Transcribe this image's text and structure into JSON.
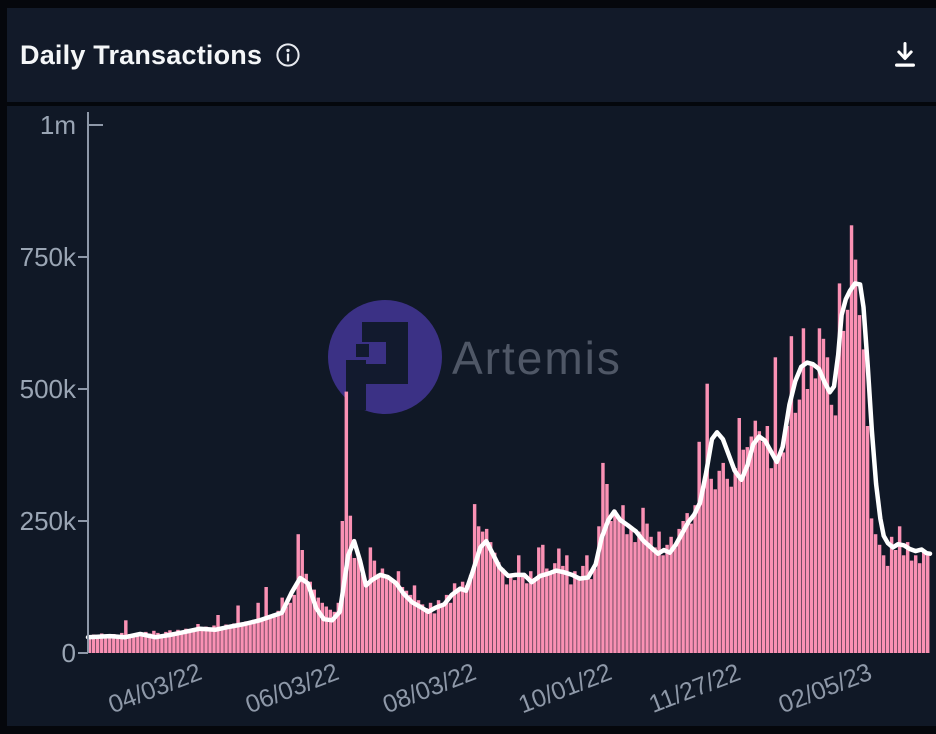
{
  "header": {
    "title": "Daily Transactions",
    "info_icon": "info-icon",
    "download_icon": "download-icon"
  },
  "watermark": {
    "brand": "Artemis"
  },
  "colors": {
    "page_frame": "#05070c",
    "header_bg": "#121a29",
    "chart_bg": "#101826",
    "bar_pink": "#fa91b4",
    "line_white": "#ffffff",
    "axis": "#8e98a8",
    "y_label": "#9aa5b4",
    "x_label": "#8e98a8",
    "title_text": "#f4f6f8",
    "watermark_circle": "#3b3185",
    "watermark_glyph": "#121a2e",
    "watermark_text": "#8d95a6"
  },
  "chart_data": {
    "type": "bar",
    "title": "Daily Transactions",
    "unit": "transactions per day",
    "grid": false,
    "legend": false,
    "y_axis": {
      "min": 0,
      "max": 1000000,
      "ticks": [
        {
          "label": "1m",
          "value_k": 1000
        },
        {
          "label": "750k",
          "value_k": 750
        },
        {
          "label": "500k",
          "value_k": 500
        },
        {
          "label": "250k",
          "value_k": 250
        },
        {
          "label": "0",
          "value_k": 0
        }
      ]
    },
    "x_axis": {
      "label_rotation_deg": -21,
      "ticks": [
        {
          "label": "04/03/22",
          "pos": 0.083
        },
        {
          "label": "06/03/22",
          "pos": 0.246
        },
        {
          "label": "08/03/22",
          "pos": 0.409
        },
        {
          "label": "10/01/22",
          "pos": 0.57
        },
        {
          "label": "11/27/22",
          "pos": 0.724
        },
        {
          "label": "02/05/23",
          "pos": 0.879
        }
      ]
    },
    "series": [
      {
        "name": "daily-transactions-bars",
        "type": "bar",
        "color": "#fa91b4",
        "values_k": [
          32,
          35,
          33,
          37,
          34,
          31,
          36,
          33,
          38,
          62,
          36,
          34,
          38,
          35,
          40,
          37,
          42,
          38,
          35,
          40,
          43,
          39,
          44,
          41,
          46,
          42,
          47,
          55,
          48,
          50,
          46,
          52,
          72,
          49,
          54,
          50,
          56,
          90,
          58,
          60,
          57,
          63,
          95,
          66,
          125,
          70,
          75,
          80,
          105,
          88,
          95,
          110,
          225,
          195,
          150,
          135,
          120,
          105,
          95,
          88,
          82,
          78,
          95,
          250,
          495,
          260,
          180,
          185,
          150,
          135,
          200,
          175,
          150,
          160,
          148,
          140,
          132,
          155,
          125,
          118,
          110,
          128,
          100,
          92,
          85,
          95,
          75,
          100,
          90,
          110,
          95,
          132,
          120,
          135,
          128,
          148,
          282,
          240,
          230,
          235,
          210,
          190,
          172,
          160,
          130,
          150,
          138,
          185,
          145,
          132,
          155,
          142,
          200,
          205,
          160,
          150,
          170,
          198,
          165,
          185,
          130,
          155,
          145,
          165,
          185,
          140,
          160,
          240,
          360,
          320,
          250,
          270,
          255,
          280,
          225,
          240,
          210,
          230,
          275,
          245,
          220,
          200,
          230,
          185,
          205,
          220,
          200,
          235,
          250,
          265,
          245,
          280,
          400,
          310,
          510,
          330,
          310,
          345,
          360,
          330,
          315,
          350,
          445,
          385,
          390,
          410,
          440,
          420,
          400,
          430,
          350,
          560,
          370,
          380,
          430,
          600,
          455,
          480,
          615,
          500,
          545,
          520,
          615,
          595,
          560,
          470,
          450,
          700,
          610,
          650,
          810,
          745,
          640,
          575,
          430,
          255,
          225,
          205,
          185,
          165,
          220,
          195,
          240,
          185,
          210,
          175,
          185,
          170,
          195,
          185
        ]
      },
      {
        "name": "smoothed-trend-line",
        "type": "line",
        "color": "#ffffff",
        "points_fx_valuek": [
          [
            0,
            30
          ],
          [
            0.026,
            32
          ],
          [
            0.044,
            30
          ],
          [
            0.062,
            36
          ],
          [
            0.08,
            30
          ],
          [
            0.097,
            34
          ],
          [
            0.115,
            40
          ],
          [
            0.133,
            46
          ],
          [
            0.151,
            44
          ],
          [
            0.169,
            50
          ],
          [
            0.186,
            55
          ],
          [
            0.204,
            62
          ],
          [
            0.219,
            70
          ],
          [
            0.23,
            76
          ],
          [
            0.242,
            115
          ],
          [
            0.252,
            142
          ],
          [
            0.261,
            132
          ],
          [
            0.271,
            85
          ],
          [
            0.28,
            64
          ],
          [
            0.29,
            62
          ],
          [
            0.299,
            78
          ],
          [
            0.309,
            185
          ],
          [
            0.316,
            212
          ],
          [
            0.323,
            175
          ],
          [
            0.33,
            128
          ],
          [
            0.337,
            138
          ],
          [
            0.347,
            148
          ],
          [
            0.356,
            144
          ],
          [
            0.366,
            132
          ],
          [
            0.375,
            112
          ],
          [
            0.385,
            96
          ],
          [
            0.394,
            88
          ],
          [
            0.404,
            78
          ],
          [
            0.413,
            86
          ],
          [
            0.423,
            92
          ],
          [
            0.432,
            110
          ],
          [
            0.442,
            122
          ],
          [
            0.449,
            118
          ],
          [
            0.456,
            150
          ],
          [
            0.466,
            200
          ],
          [
            0.473,
            212
          ],
          [
            0.48,
            190
          ],
          [
            0.489,
            162
          ],
          [
            0.499,
            146
          ],
          [
            0.508,
            148
          ],
          [
            0.518,
            148
          ],
          [
            0.527,
            134
          ],
          [
            0.537,
            146
          ],
          [
            0.546,
            150
          ],
          [
            0.556,
            156
          ],
          [
            0.565,
            153
          ],
          [
            0.575,
            148
          ],
          [
            0.584,
            141
          ],
          [
            0.594,
            143
          ],
          [
            0.603,
            168
          ],
          [
            0.61,
            218
          ],
          [
            0.618,
            252
          ],
          [
            0.625,
            268
          ],
          [
            0.632,
            252
          ],
          [
            0.641,
            242
          ],
          [
            0.651,
            230
          ],
          [
            0.66,
            212
          ],
          [
            0.67,
            198
          ],
          [
            0.677,
            188
          ],
          [
            0.684,
            195
          ],
          [
            0.691,
            190
          ],
          [
            0.698,
            205
          ],
          [
            0.706,
            228
          ],
          [
            0.713,
            248
          ],
          [
            0.72,
            262
          ],
          [
            0.727,
            285
          ],
          [
            0.734,
            340
          ],
          [
            0.741,
            405
          ],
          [
            0.747,
            418
          ],
          [
            0.754,
            405
          ],
          [
            0.761,
            375
          ],
          [
            0.768,
            345
          ],
          [
            0.776,
            328
          ],
          [
            0.783,
            355
          ],
          [
            0.79,
            395
          ],
          [
            0.797,
            410
          ],
          [
            0.804,
            402
          ],
          [
            0.811,
            382
          ],
          [
            0.818,
            362
          ],
          [
            0.825,
            390
          ],
          [
            0.833,
            470
          ],
          [
            0.84,
            515
          ],
          [
            0.847,
            542
          ],
          [
            0.854,
            550
          ],
          [
            0.861,
            547
          ],
          [
            0.868,
            538
          ],
          [
            0.875,
            512
          ],
          [
            0.881,
            494
          ],
          [
            0.886,
            505
          ],
          [
            0.891,
            565
          ],
          [
            0.895,
            640
          ],
          [
            0.9,
            670
          ],
          [
            0.905,
            686
          ],
          [
            0.911,
            700
          ],
          [
            0.917,
            698
          ],
          [
            0.921,
            655
          ],
          [
            0.926,
            545
          ],
          [
            0.931,
            420
          ],
          [
            0.936,
            320
          ],
          [
            0.941,
            255
          ],
          [
            0.945,
            222
          ],
          [
            0.95,
            208
          ],
          [
            0.956,
            200
          ],
          [
            0.962,
            206
          ],
          [
            0.969,
            204
          ],
          [
            0.976,
            197
          ],
          [
            0.983,
            193
          ],
          [
            0.99,
            196
          ],
          [
            0.996,
            189
          ],
          [
            1,
            188
          ]
        ]
      }
    ]
  }
}
